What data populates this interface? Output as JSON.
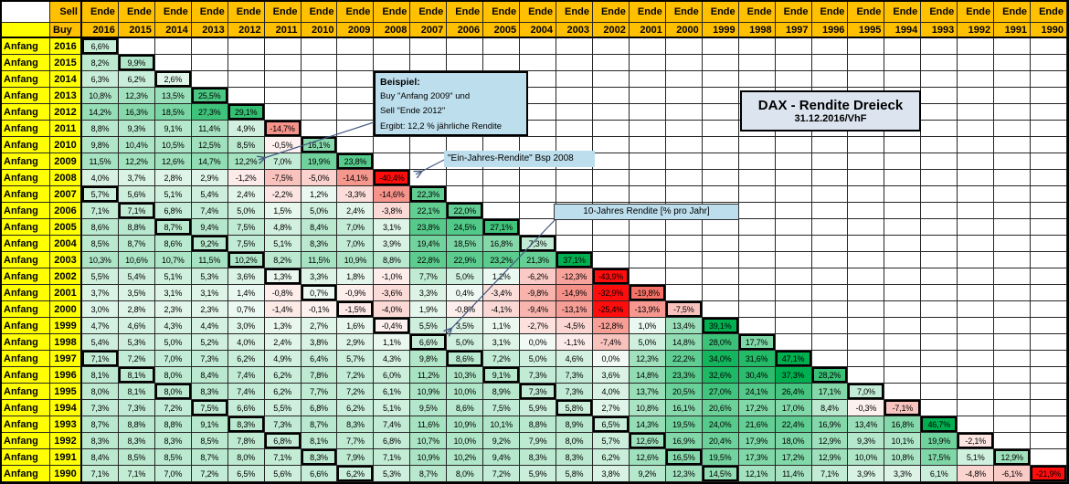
{
  "title_box": {
    "title": "DAX - Rendite Dreieck",
    "subtitle": "31.12.2016/VhF"
  },
  "header": {
    "sell_label": "Sell",
    "buy_label": "Buy",
    "ende_label": "Ende",
    "row_label": "Anfang"
  },
  "example_box": {
    "title": "Beispiel:",
    "line1": "Buy \"Anfang 2009\" und",
    "line2": "Sell \"Ende 2012\"",
    "line3": "Ergibt: 12,2 % jährliche Rendite"
  },
  "annotations": {
    "one_year": "\"Ein-Jahres-Rendite\" Bsp 2008",
    "ten_year": "10-Jahres Rendite  [% pro Jahr]"
  },
  "colors": {
    "header_orange": "#FFC000",
    "row_label_yellow": "#FFFF00",
    "note_blue": "#BDDEEC",
    "title_box_blue": "#DCE4F0",
    "strong_red": "#FF0D0D",
    "strong_green": "#00B050",
    "arrow_blue": "#44597F"
  },
  "chart_data": {
    "type": "heatmap",
    "title": "DAX - Rendite Dreieck",
    "unit": "% pro Jahr (annualisierte Rendite)",
    "legend": "green = positive annualized return, red = negative; thick boxes mark 1-, 10- and 20-year holding periods",
    "columns_end_years": [
      2016,
      2015,
      2014,
      2013,
      2012,
      2011,
      2010,
      2009,
      2008,
      2007,
      2006,
      2005,
      2004,
      2003,
      2002,
      2001,
      2000,
      1999,
      1998,
      1997,
      1996,
      1995,
      1994,
      1993,
      1992,
      1991,
      1990
    ],
    "rows": [
      {
        "start": 2016,
        "values": [
          6.6
        ]
      },
      {
        "start": 2015,
        "values": [
          8.2,
          9.9
        ]
      },
      {
        "start": 2014,
        "values": [
          6.3,
          6.2,
          2.6
        ]
      },
      {
        "start": 2013,
        "values": [
          10.8,
          12.3,
          13.5,
          25.5
        ]
      },
      {
        "start": 2012,
        "values": [
          14.2,
          16.3,
          18.5,
          27.3,
          29.1
        ]
      },
      {
        "start": 2011,
        "values": [
          8.8,
          9.3,
          9.1,
          11.4,
          4.9,
          -14.7
        ]
      },
      {
        "start": 2010,
        "values": [
          9.8,
          10.4,
          10.5,
          12.5,
          8.5,
          -0.5,
          16.1
        ]
      },
      {
        "start": 2009,
        "values": [
          11.5,
          12.2,
          12.6,
          14.7,
          12.2,
          7.0,
          19.9,
          23.8
        ]
      },
      {
        "start": 2008,
        "values": [
          4.0,
          3.7,
          2.8,
          2.9,
          -1.2,
          -7.5,
          -5.0,
          -14.1,
          -40.4
        ]
      },
      {
        "start": 2007,
        "values": [
          5.7,
          5.6,
          5.1,
          5.4,
          2.4,
          -2.2,
          1.2,
          -3.3,
          -14.6,
          22.3
        ]
      },
      {
        "start": 2006,
        "values": [
          7.1,
          7.1,
          6.8,
          7.4,
          5.0,
          1.5,
          5.0,
          2.4,
          -3.8,
          22.1,
          22.0
        ]
      },
      {
        "start": 2005,
        "values": [
          8.6,
          8.8,
          8.7,
          9.4,
          7.5,
          4.8,
          8.4,
          7.0,
          3.1,
          23.8,
          24.5,
          27.1
        ]
      },
      {
        "start": 2004,
        "values": [
          8.5,
          8.7,
          8.6,
          9.2,
          7.5,
          5.1,
          8.3,
          7.0,
          3.9,
          19.4,
          18.5,
          16.8,
          7.3
        ]
      },
      {
        "start": 2003,
        "values": [
          10.3,
          10.6,
          10.7,
          11.5,
          10.2,
          8.2,
          11.5,
          10.9,
          8.8,
          22.8,
          22.9,
          23.2,
          21.3,
          37.1
        ]
      },
      {
        "start": 2002,
        "values": [
          5.5,
          5.4,
          5.1,
          5.3,
          3.6,
          1.3,
          3.3,
          1.8,
          -1.0,
          7.7,
          5.0,
          1.2,
          -6.2,
          -12.3,
          -43.9
        ]
      },
      {
        "start": 2001,
        "values": [
          3.7,
          3.5,
          3.1,
          3.1,
          1.4,
          -0.8,
          0.7,
          -0.9,
          -3.6,
          3.3,
          0.4,
          -3.4,
          -9.8,
          -14.9,
          -32.9,
          -19.8
        ]
      },
      {
        "start": 2000,
        "values": [
          3.0,
          2.8,
          2.3,
          2.3,
          0.7,
          -1.4,
          -0.1,
          -1.5,
          -4.0,
          1.9,
          -0.8,
          -4.1,
          -9.4,
          -13.1,
          -25.4,
          -13.9,
          -7.5
        ]
      },
      {
        "start": 1999,
        "values": [
          4.7,
          4.6,
          4.3,
          4.4,
          3.0,
          1.3,
          2.7,
          1.6,
          -0.4,
          5.5,
          3.5,
          1.1,
          -2.7,
          -4.5,
          -12.8,
          1.0,
          13.4,
          39.1
        ]
      },
      {
        "start": 1998,
        "values": [
          5.4,
          5.3,
          5.0,
          5.2,
          4.0,
          2.4,
          3.8,
          2.9,
          1.1,
          6.6,
          5.0,
          3.1,
          0.0,
          -1.1,
          -7.4,
          5.0,
          14.8,
          28.0,
          17.7
        ]
      },
      {
        "start": 1997,
        "values": [
          7.1,
          7.2,
          7.0,
          7.3,
          6.2,
          4.9,
          6.4,
          5.7,
          4.3,
          9.8,
          8.6,
          7.2,
          5.0,
          4.6,
          0.0,
          12.3,
          22.2,
          34.0,
          31.6,
          47.1
        ]
      },
      {
        "start": 1996,
        "values": [
          8.1,
          8.1,
          8.0,
          8.4,
          7.4,
          6.2,
          7.8,
          7.2,
          6.0,
          11.2,
          10.3,
          9.1,
          7.3,
          7.3,
          3.6,
          14.8,
          23.3,
          32.6,
          30.4,
          37.3,
          28.2
        ]
      },
      {
        "start": 1995,
        "values": [
          8.0,
          8.1,
          8.0,
          8.3,
          7.4,
          6.2,
          7.7,
          7.2,
          6.1,
          10.9,
          10.0,
          8.9,
          7.3,
          7.3,
          4.0,
          13.7,
          20.5,
          27.0,
          24.1,
          26.4,
          17.1,
          7.0
        ]
      },
      {
        "start": 1994,
        "values": [
          7.3,
          7.3,
          7.2,
          7.5,
          6.6,
          5.5,
          6.8,
          6.2,
          5.1,
          9.5,
          8.6,
          7.5,
          5.9,
          5.8,
          2.7,
          10.8,
          16.1,
          20.6,
          17.2,
          17.0,
          8.4,
          -0.3,
          -7.1
        ]
      },
      {
        "start": 1993,
        "values": [
          8.7,
          8.8,
          8.8,
          9.1,
          8.3,
          7.3,
          8.7,
          8.3,
          7.4,
          11.6,
          10.9,
          10.1,
          8.8,
          8.9,
          6.5,
          14.3,
          19.5,
          24.0,
          21.6,
          22.4,
          16.9,
          13.4,
          16.8,
          46.7
        ]
      },
      {
        "start": 1992,
        "values": [
          8.3,
          8.3,
          8.3,
          8.5,
          7.8,
          6.8,
          8.1,
          7.7,
          6.8,
          10.7,
          10.0,
          9.2,
          7.9,
          8.0,
          5.7,
          12.6,
          16.9,
          20.4,
          17.9,
          18.0,
          12.9,
          9.3,
          10.1,
          19.9,
          -2.1
        ]
      },
      {
        "start": 1991,
        "values": [
          8.4,
          8.5,
          8.5,
          8.7,
          8.0,
          7.1,
          8.3,
          7.9,
          7.1,
          10.9,
          10.2,
          9.4,
          8.3,
          8.3,
          6.2,
          12.6,
          16.5,
          19.5,
          17.3,
          17.2,
          12.9,
          10.0,
          10.8,
          17.5,
          5.1,
          12.9
        ]
      },
      {
        "start": 1990,
        "values": [
          7.1,
          7.1,
          7.0,
          7.2,
          6.5,
          5.6,
          6.6,
          6.2,
          5.3,
          8.7,
          8.0,
          7.2,
          5.9,
          5.8,
          3.8,
          9.2,
          12.3,
          14.5,
          12.1,
          11.4,
          7.1,
          3.9,
          3.3,
          6.1,
          -4.8,
          -6.1,
          -21.9
        ]
      }
    ]
  }
}
